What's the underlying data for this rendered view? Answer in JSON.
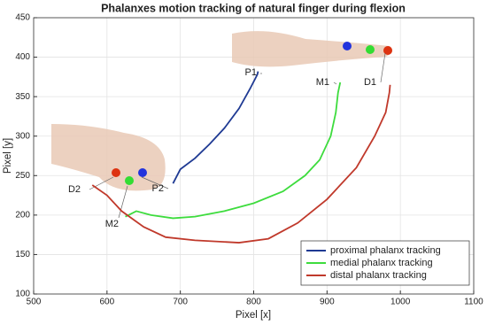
{
  "chart_data": {
    "type": "line",
    "title": "Phalanxes motion tracking of natural finger during flexion",
    "x_label": "Pixel [x]",
    "y_label": "Pixel [y]",
    "xlim": [
      500,
      1100
    ],
    "xticks": [
      500,
      600,
      700,
      800,
      900,
      1000,
      1100
    ],
    "ylim": [
      100,
      450
    ],
    "yticks": [
      100,
      150,
      200,
      250,
      300,
      350,
      400,
      450
    ],
    "grid": true,
    "legend": "lower right",
    "annotations": [
      "P1",
      "M1",
      "D1",
      "D2",
      "P2",
      "M2"
    ],
    "series": [
      {
        "name": "proximal phalanx tracking",
        "color": "#1f3a93",
        "x": [
          690,
          700,
          720,
          740,
          760,
          780,
          795,
          805,
          806
        ],
        "values": [
          240,
          258,
          272,
          290,
          310,
          335,
          360,
          378,
          382
        ]
      },
      {
        "name": "medial phalanx tracking",
        "color": "#3ddc3d",
        "x": [
          625,
          640,
          660,
          690,
          720,
          760,
          800,
          840,
          870,
          890,
          905,
          912,
          915,
          918
        ],
        "values": [
          198,
          205,
          200,
          196,
          198,
          205,
          215,
          230,
          250,
          270,
          300,
          330,
          355,
          368
        ]
      },
      {
        "name": "distal phalanx tracking",
        "color": "#c0392b",
        "x": [
          580,
          600,
          620,
          650,
          680,
          720,
          780,
          820,
          860,
          900,
          940,
          965,
          980,
          985,
          986
        ],
        "values": [
          238,
          225,
          205,
          185,
          172,
          168,
          165,
          170,
          190,
          220,
          260,
          300,
          330,
          355,
          365
        ]
      }
    ]
  }
}
